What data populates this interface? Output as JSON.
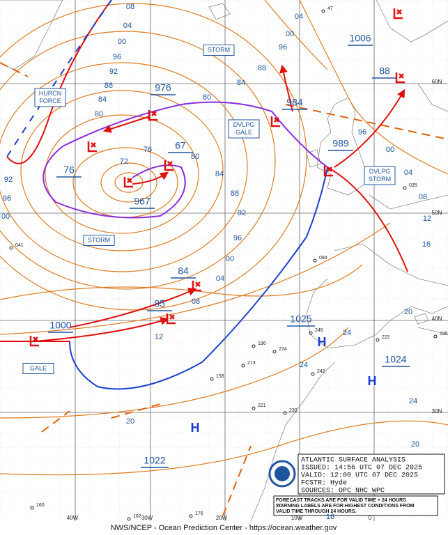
{
  "map": {
    "isobar_labels": [
      "08",
      "04",
      "00",
      "96",
      "92",
      "88",
      "84",
      "80",
      "76",
      "72",
      "80",
      "80",
      "84",
      "88",
      "92",
      "96",
      "00",
      "04",
      "08",
      "12",
      "20",
      "92",
      "96",
      "00",
      "04",
      "00",
      "96",
      "88",
      "84",
      "96",
      "00",
      "04",
      "08",
      "12",
      "16",
      "20",
      "24",
      "24",
      "24",
      "20",
      "16"
    ],
    "lows": [
      "976",
      "984",
      "967",
      "989",
      "1000",
      "1006",
      "88",
      "67",
      "76",
      "84",
      "85"
    ],
    "highs": [
      {
        "label": "H",
        "pressure": "1025"
      },
      {
        "label": "H",
        "pressure": "1024"
      },
      {
        "label": "H",
        "pressure": "1022"
      }
    ],
    "warnings": [
      {
        "lines": [
          "HURCN",
          "FORCE"
        ]
      },
      {
        "lines": [
          "STORM"
        ]
      },
      {
        "lines": [
          "DVLPG",
          "GALE"
        ]
      },
      {
        "lines": [
          "STORM"
        ]
      },
      {
        "lines": [
          "DVLPG",
          "STORM"
        ]
      },
      {
        "lines": [
          "GALE"
        ]
      }
    ],
    "grid_labels": [
      "40W",
      "30W",
      "20W",
      "10W",
      "0",
      "60N",
      "50N",
      "40N",
      "30N"
    ],
    "stations": [
      "041",
      "035",
      "094",
      "246",
      "222",
      "195",
      "196",
      "224",
      "213",
      "158",
      "221",
      "230",
      "242",
      "160",
      "162",
      "176",
      "47"
    ],
    "info_box": [
      "ATLANTIC SURFACE ANALYSIS",
      "ISSUED: 14:56 UTC 07 DEC 2025",
      "VALID:  12:00 UTC 07 DEC 2025",
      "FCSTR:  Hyde",
      "SOURCES: OPC NHC WPC"
    ],
    "note": [
      "FORECAST TRACKS ARE FOR VALID TIME + 24 HOURS",
      "WARNING LABELS ARE FOR HIGHEST CONDITIONS FROM",
      "VALID TIME THROUGH 24 HOURS."
    ],
    "footer": "NWS/NCEP - Ocean Prediction Center - https://ocean.weather.gov"
  }
}
